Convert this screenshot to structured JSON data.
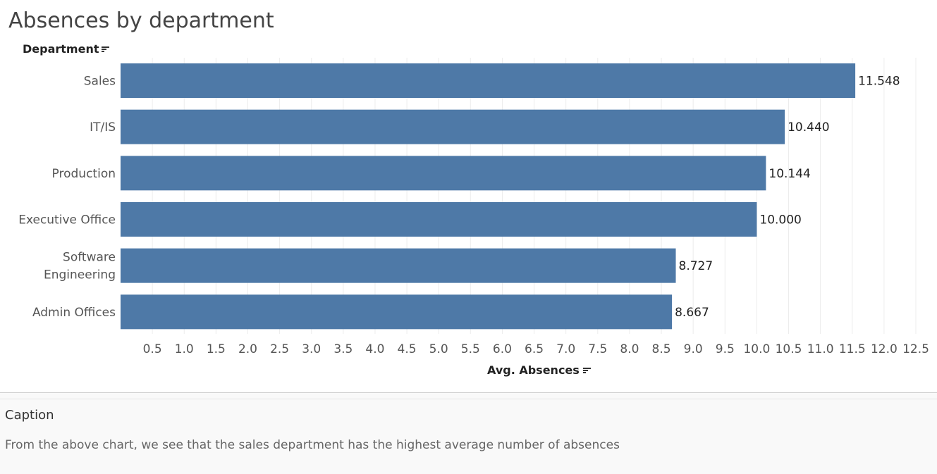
{
  "title": "Absences by department",
  "row_header": "Department",
  "caption": {
    "title": "Caption",
    "text": "From the above chart, we see that the sales department has the highest average number of absences"
  },
  "colors": {
    "bar": "#4e79a7",
    "grid": "#ececec",
    "label": "#555555",
    "value_label": "#222222"
  },
  "chart_data": {
    "type": "bar",
    "orientation": "horizontal",
    "title": "Absences by department",
    "xlabel": "Avg. Absences",
    "ylabel": "Department",
    "categories": [
      "Sales",
      "IT/IS",
      "Production",
      "Executive Office",
      "Software Engineering",
      "Admin Offices"
    ],
    "category_lines": [
      [
        "Sales"
      ],
      [
        "IT/IS"
      ],
      [
        "Production"
      ],
      [
        "Executive Office"
      ],
      [
        "Software",
        "Engineering"
      ],
      [
        "Admin Offices"
      ]
    ],
    "values": [
      11.548,
      10.44,
      10.144,
      10.0,
      8.727,
      8.667
    ],
    "data_labels": [
      "11.548",
      "10.440",
      "10.144",
      "10.000",
      "8.727",
      "8.667"
    ],
    "xlim": [
      0,
      12.5
    ],
    "xticks": [
      "0.5",
      "1.0",
      "1.5",
      "2.0",
      "2.5",
      "3.0",
      "3.5",
      "4.0",
      "4.5",
      "5.0",
      "5.5",
      "6.0",
      "6.5",
      "7.0",
      "7.5",
      "8.0",
      "8.5",
      "9.0",
      "9.5",
      "10.0",
      "10.5",
      "11.0",
      "11.5",
      "12.0",
      "12.5"
    ],
    "grid": true,
    "legend": "none"
  }
}
